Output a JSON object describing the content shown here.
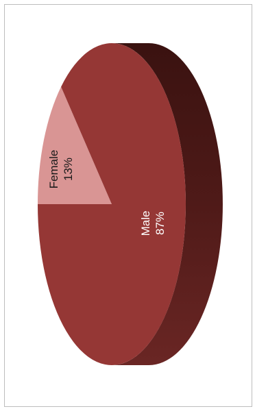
{
  "chart_data": {
    "type": "pie",
    "three_d": true,
    "orientation": "rotated-90",
    "categories": [
      "Female",
      "Male"
    ],
    "values": [
      13,
      87
    ],
    "data_labels": [
      {
        "category": "Female",
        "value": "13%"
      },
      {
        "category": "Male",
        "value": "87%"
      }
    ],
    "colors": {
      "Female": "#d99594",
      "Male": "#953735",
      "side": "#4a1817",
      "border": "#bdbdbd"
    },
    "legend": "none",
    "title": ""
  }
}
